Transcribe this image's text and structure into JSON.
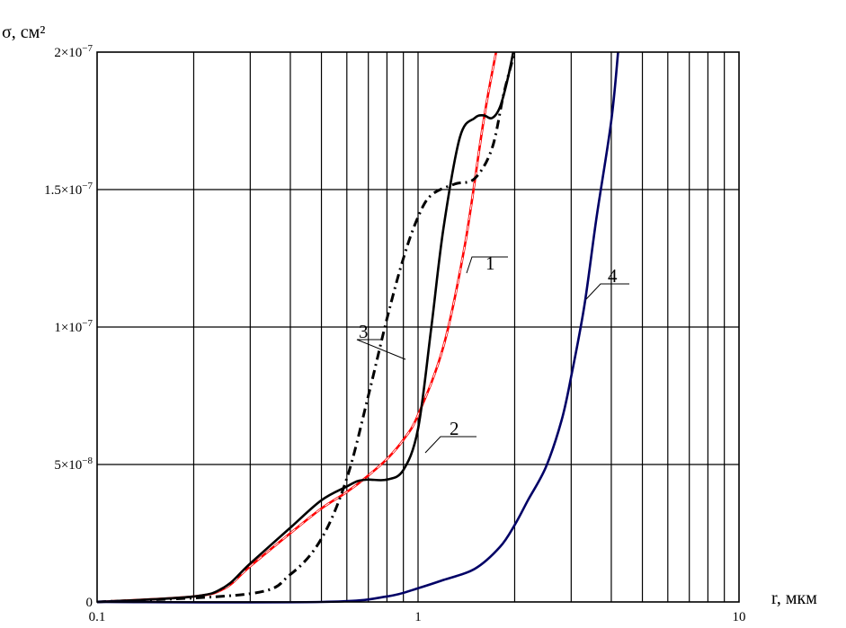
{
  "chart_data": {
    "type": "line",
    "title": "",
    "xlabel": "r, мкм",
    "ylabel": "σ, см²",
    "x_scale": "log",
    "xlim": [
      0.1,
      10
    ],
    "ylim": [
      0,
      2e-07
    ],
    "grid": true,
    "x_tick_labels": [
      "0.1",
      "1",
      "10"
    ],
    "y_tick_labels": [
      {
        "value": 0,
        "base": "0",
        "exp": ""
      },
      {
        "value": 5e-08,
        "base": "5×10",
        "exp": "−8"
      },
      {
        "value": 1e-07,
        "base": "1×10",
        "exp": "−7"
      },
      {
        "value": 1.5e-07,
        "base": "1.5×10",
        "exp": "−7"
      },
      {
        "value": 2e-07,
        "base": "2×10",
        "exp": "−7"
      }
    ],
    "series": [
      {
        "label": "1",
        "color": "#ff0000",
        "style": "solid-dashed",
        "x": [
          0.1,
          0.2,
          0.25,
          0.3,
          0.4,
          0.5,
          0.6,
          0.7,
          0.8,
          0.9,
          1.0,
          1.2,
          1.4,
          1.6,
          1.75
        ],
        "y": [
          0,
          2e-09,
          5e-09,
          1.3e-08,
          2.5e-08,
          3.4e-08,
          4e-08,
          4.6e-08,
          5.2e-08,
          5.9e-08,
          6.8e-08,
          9.3e-08,
          1.3e-07,
          1.75e-07,
          2e-07
        ]
      },
      {
        "label": "2",
        "color": "#000000",
        "style": "solid",
        "x": [
          0.1,
          0.2,
          0.25,
          0.3,
          0.4,
          0.5,
          0.6,
          0.65,
          0.7,
          0.8,
          0.9,
          1.0,
          1.1,
          1.2,
          1.35,
          1.5,
          1.6,
          1.7,
          1.8,
          1.9,
          1.98
        ],
        "y": [
          0,
          2e-09,
          5.5e-09,
          1.4e-08,
          2.7e-08,
          3.7e-08,
          4.2e-08,
          4.4e-08,
          4.45e-08,
          4.45e-08,
          4.8e-08,
          6.3e-08,
          1e-07,
          1.36e-07,
          1.69e-07,
          1.76e-07,
          1.77e-07,
          1.76e-07,
          1.8e-07,
          1.9e-07,
          2e-07
        ]
      },
      {
        "label": "3",
        "color": "#000000",
        "style": "dash-dot",
        "x": [
          0.1,
          0.3,
          0.4,
          0.5,
          0.6,
          0.7,
          0.8,
          0.9,
          1.0,
          1.1,
          1.3,
          1.5,
          1.7,
          1.85,
          2.0
        ],
        "y": [
          0,
          3e-09,
          1e-08,
          2.3e-08,
          4.5e-08,
          7.5e-08,
          1.03e-07,
          1.25e-07,
          1.4e-07,
          1.48e-07,
          1.52e-07,
          1.54e-07,
          1.65e-07,
          1.85e-07,
          2e-07
        ]
      },
      {
        "label": "4",
        "color": "#000066",
        "style": "solid",
        "x": [
          0.1,
          0.5,
          0.8,
          1.0,
          1.2,
          1.5,
          1.8,
          2.0,
          2.2,
          2.5,
          2.8,
          3.0,
          3.3,
          3.6,
          4.0,
          4.2
        ],
        "y": [
          0,
          0,
          2e-09,
          5e-09,
          8e-09,
          1.2e-08,
          2e-08,
          2.8e-08,
          3.7e-08,
          4.9e-08,
          6.6e-08,
          8.2e-08,
          1.08e-07,
          1.4e-07,
          1.75e-07,
          2e-07
        ]
      }
    ]
  }
}
